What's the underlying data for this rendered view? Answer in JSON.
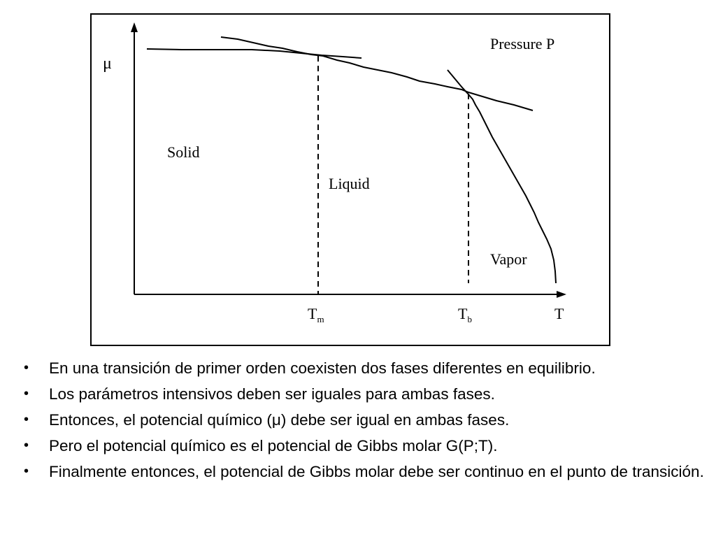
{
  "diagram": {
    "y_axis_label": "μ",
    "x_axis_label": "T",
    "pressure_label": "Pressure P",
    "regions": {
      "solid": "Solid",
      "liquid": "Liquid",
      "vapor": "Vapor"
    },
    "tick_labels": {
      "tm_main": "T",
      "tm_sub": "m",
      "tb_main": "T",
      "tb_sub": "b"
    }
  },
  "bullets": [
    "En una transición de primer orden coexisten dos fases diferentes en equilibrio.",
    "Los parámetros intensivos deben ser iguales para ambas fases.",
    "Entonces, el potencial químico (μ) debe ser igual en ambas fases.",
    "Pero el potencial químico es el potencial de Gibbs molar G(P;T).",
    "Finalmente entonces, el potencial de Gibbs molar debe ser continuo en el punto de transición."
  ],
  "bullet_symbol": "•"
}
